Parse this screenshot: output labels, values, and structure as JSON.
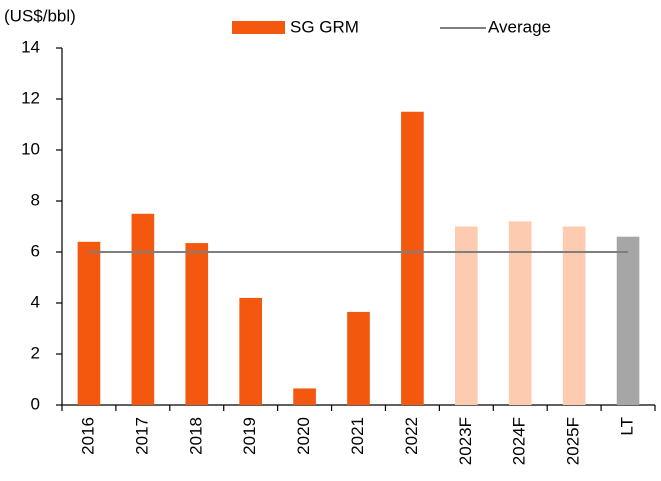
{
  "chart_data": {
    "type": "bar",
    "y_label": "(US$/bbl)",
    "categories": [
      "2016",
      "2017",
      "2018",
      "2019",
      "2020",
      "2021",
      "2022",
      "2023F",
      "2024F",
      "2025F",
      "LT"
    ],
    "series": [
      {
        "name": "SG GRM",
        "color": "#f4580f",
        "colors": [
          "#f4580f",
          "#f4580f",
          "#f4580f",
          "#f4580f",
          "#f4580f",
          "#f4580f",
          "#f4580f",
          "#fccbb0",
          "#fccbb0",
          "#fccbb0",
          "#a6a6a6"
        ],
        "values": [
          6.4,
          7.5,
          6.35,
          4.2,
          0.65,
          3.65,
          11.5,
          7.0,
          7.2,
          7.0,
          6.6
        ]
      }
    ],
    "average": {
      "name": "Average",
      "color": "#7f7f7f",
      "value": 6
    },
    "ylim": [
      0,
      14
    ],
    "yticks": [
      0,
      2,
      4,
      6,
      8,
      10,
      12,
      14
    ],
    "grid": false
  }
}
